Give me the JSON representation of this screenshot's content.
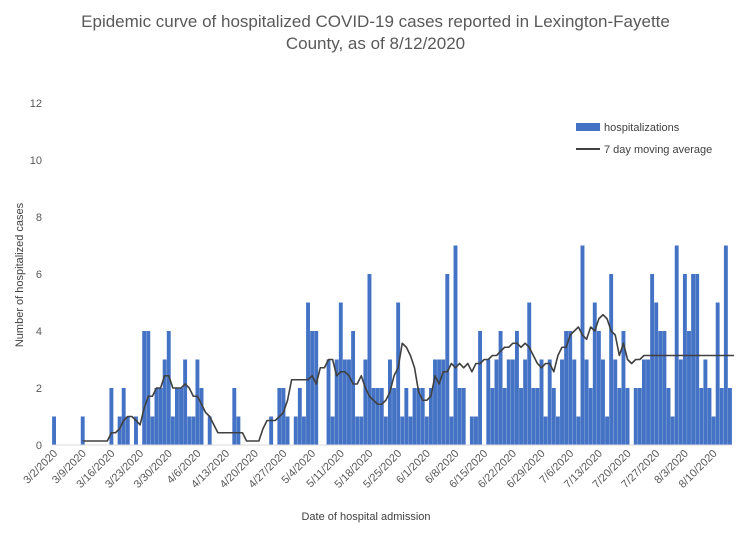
{
  "chart_data": {
    "type": "bar",
    "title_line1": "Epidemic curve of hospitalized COVID-19 cases reported in Lexington-Fayette",
    "title_line2": "County, as of 8/12/2020",
    "xlabel": "Date of hospital admission",
    "ylabel": "Number  of hospitalized cases",
    "ylim": [
      0,
      12
    ],
    "yticks": [
      0,
      2,
      4,
      6,
      8,
      10,
      12
    ],
    "grid": false,
    "legend_position": "top-right",
    "start_date": "3/2/2020",
    "xtick_labels": [
      "3/2/2020",
      "3/9/2020",
      "3/16/2020",
      "3/23/2020",
      "3/30/2020",
      "4/6/2020",
      "4/13/2020",
      "4/20/2020",
      "4/27/2020",
      "5/4/2020",
      "5/11/2020",
      "5/18/2020",
      "5/25/2020",
      "6/1/2020",
      "6/8/2020",
      "6/15/2020",
      "6/22/2020",
      "6/29/2020",
      "7/6/2020",
      "7/13/2020",
      "7/20/2020",
      "7/27/2020",
      "8/3/2020",
      "8/10/2020"
    ],
    "colors": {
      "bar": "#4472c4",
      "line": "#404040"
    },
    "series": [
      {
        "name": "hospitalizations",
        "kind": "bar",
        "values": [
          1,
          0,
          0,
          0,
          0,
          0,
          0,
          1,
          0,
          0,
          0,
          0,
          0,
          0,
          2,
          0,
          1,
          2,
          1,
          0,
          1,
          0,
          4,
          4,
          1,
          2,
          2,
          3,
          4,
          1,
          2,
          2,
          3,
          1,
          1,
          3,
          2,
          0,
          1,
          0,
          0,
          0,
          0,
          0,
          2,
          1,
          0,
          0,
          0,
          0,
          0,
          0,
          0,
          1,
          0,
          2,
          2,
          1,
          0,
          1,
          2,
          1,
          5,
          4,
          4,
          0,
          0,
          3,
          1,
          3,
          5,
          3,
          3,
          4,
          1,
          1,
          3,
          6,
          2,
          2,
          2,
          1,
          3,
          2,
          5,
          1,
          2,
          1,
          2,
          2,
          2,
          1,
          2,
          3,
          3,
          3,
          6,
          1,
          7,
          2,
          2,
          0,
          1,
          1,
          4,
          0,
          3,
          2,
          3,
          4,
          2,
          3,
          3,
          4,
          2,
          3,
          5,
          2,
          2,
          3,
          1,
          3,
          2,
          1,
          3,
          4,
          4,
          3,
          1,
          7,
          3,
          2,
          5,
          4,
          3,
          1,
          6,
          3,
          2,
          4,
          2,
          0,
          2,
          2,
          3,
          3,
          6,
          5,
          4,
          4,
          2,
          1,
          7,
          3,
          6,
          4,
          6,
          6,
          2,
          3,
          2,
          1,
          5,
          2,
          7,
          2
        ],
        "value_min": 0
      },
      {
        "name": "7 day moving average",
        "kind": "line",
        "values": [
          null,
          null,
          null,
          null,
          null,
          null,
          null,
          0.14,
          0.14,
          0.14,
          0.14,
          0.14,
          0.14,
          0.14,
          0.43,
          0.43,
          0.57,
          0.86,
          1.0,
          1.0,
          0.86,
          0.71,
          1.29,
          1.71,
          1.71,
          2.0,
          2.0,
          2.43,
          2.43,
          2.0,
          2.0,
          2.0,
          2.14,
          2.0,
          1.71,
          1.71,
          1.43,
          1.14,
          1.0,
          0.71,
          0.43,
          0.43,
          0.43,
          0.43,
          0.43,
          0.43,
          0.43,
          0.14,
          0.14,
          0.14,
          0.14,
          0.57,
          0.86,
          0.86,
          0.86,
          1.0,
          1.14,
          1.57,
          2.29,
          2.29,
          2.29,
          2.29,
          2.29,
          2.43,
          2.14,
          2.71,
          2.71,
          3.0,
          3.0,
          2.43,
          2.57,
          2.57,
          2.43,
          2.14,
          2.14,
          2.43,
          2.0,
          1.71,
          1.57,
          1.43,
          1.43,
          1.57,
          1.86,
          2.43,
          2.71,
          3.57,
          3.43,
          3.14,
          2.71,
          1.86,
          1.57,
          1.57,
          1.71,
          2.43,
          2.14,
          2.57,
          2.57,
          2.86,
          2.71,
          2.86,
          2.71,
          2.86,
          2.57,
          2.86,
          2.86,
          3.0,
          3.0,
          3.14,
          3.14,
          3.29,
          3.43,
          3.43,
          3.57,
          3.57,
          3.43,
          3.57,
          3.43,
          3.14,
          2.86,
          2.71,
          2.86,
          2.86,
          2.57,
          3.14,
          3.43,
          3.43,
          3.86,
          4.0,
          4.14,
          3.86,
          3.71,
          4.14,
          4.0,
          4.43,
          4.57,
          4.43,
          4.0,
          3.86,
          3.14,
          3.57,
          3.0,
          2.86,
          3.0,
          3.0,
          3.14,
          3.14,
          3.14,
          3.14,
          3.14,
          3.14,
          3.14,
          3.14,
          3.14,
          3.14,
          3.14,
          3.14,
          3.14,
          3.14,
          3.14,
          3.14,
          3.14,
          3.14,
          3.14,
          3.14,
          3.14,
          3.14,
          3.14
        ]
      }
    ]
  }
}
